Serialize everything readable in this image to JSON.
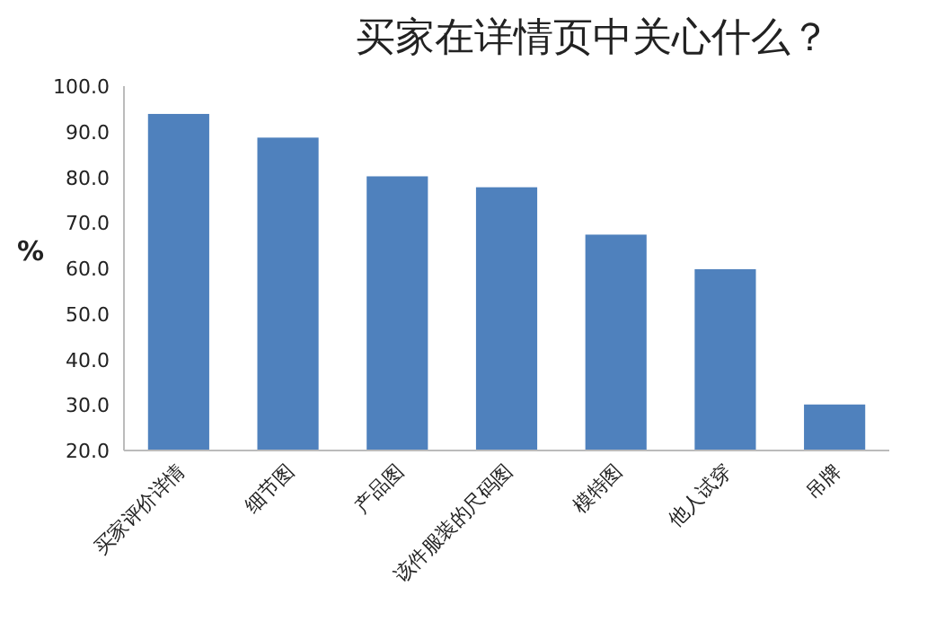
{
  "chart_data": {
    "type": "bar",
    "title": "买家在详情页中关心什么？",
    "ylabel": "%",
    "categories": [
      "买家评价详情",
      "细节图",
      "产品图",
      "该件服装的尺码图",
      "模特图",
      "他人试穿",
      "吊牌"
    ],
    "values": [
      93.9,
      88.7,
      80.2,
      77.8,
      67.4,
      59.8,
      30.1
    ],
    "color": "#4f81bd",
    "ylim": [
      20,
      100
    ],
    "yticks": [
      {
        "value": 20,
        "label": "20.0"
      },
      {
        "value": 30,
        "label": "30.0"
      },
      {
        "value": 40,
        "label": "40.0"
      },
      {
        "value": 50,
        "label": "50.0"
      },
      {
        "value": 60,
        "label": "60.0"
      },
      {
        "value": 70,
        "label": "70.0"
      },
      {
        "value": 80,
        "label": "80.0"
      },
      {
        "value": 90,
        "label": "90.0"
      },
      {
        "value": 100,
        "label": "100.0"
      }
    ]
  }
}
